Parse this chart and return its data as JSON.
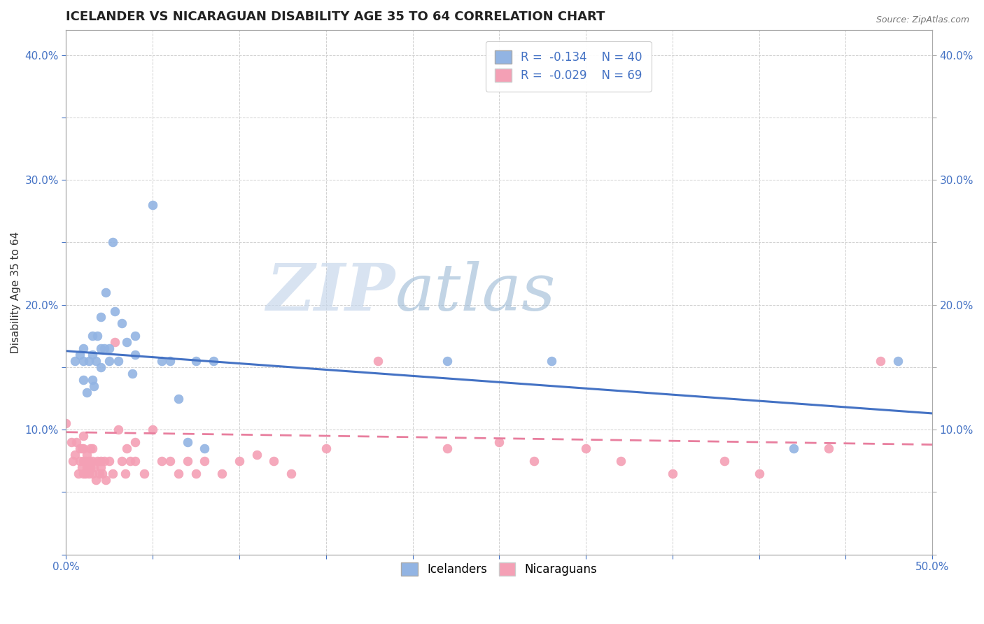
{
  "title": "ICELANDER VS NICARAGUAN DISABILITY AGE 35 TO 64 CORRELATION CHART",
  "source": "Source: ZipAtlas.com",
  "xlabel": "",
  "ylabel": "Disability Age 35 to 64",
  "xlim": [
    0.0,
    0.5
  ],
  "ylim": [
    0.0,
    0.42
  ],
  "xticks": [
    0.0,
    0.05,
    0.1,
    0.15,
    0.2,
    0.25,
    0.3,
    0.35,
    0.4,
    0.45,
    0.5
  ],
  "yticks": [
    0.0,
    0.05,
    0.1,
    0.15,
    0.2,
    0.25,
    0.3,
    0.35,
    0.4
  ],
  "icelander_color": "#92b4e3",
  "nicaraguan_color": "#f4a0b5",
  "icelander_line_color": "#4472c4",
  "nicaraguan_line_color": "#e87e9e",
  "legend_R_icelander": "-0.134",
  "legend_N_icelander": "40",
  "legend_R_nicaraguan": "-0.029",
  "legend_N_nicaraguan": "69",
  "watermark_zip": "ZIP",
  "watermark_atlas": "atlas",
  "background_color": "#ffffff",
  "grid_color": "#d0d0d0",
  "title_fontsize": 13,
  "axis_label_fontsize": 11,
  "tick_fontsize": 11,
  "legend_fontsize": 12,
  "source_fontsize": 9,
  "icelander_x": [
    0.005,
    0.008,
    0.01,
    0.01,
    0.01,
    0.012,
    0.013,
    0.015,
    0.015,
    0.015,
    0.016,
    0.017,
    0.018,
    0.02,
    0.02,
    0.02,
    0.022,
    0.023,
    0.025,
    0.025,
    0.027,
    0.028,
    0.03,
    0.032,
    0.035,
    0.038,
    0.04,
    0.04,
    0.05,
    0.055,
    0.06,
    0.065,
    0.07,
    0.075,
    0.08,
    0.085,
    0.22,
    0.28,
    0.42,
    0.48
  ],
  "icelander_y": [
    0.155,
    0.16,
    0.14,
    0.155,
    0.165,
    0.13,
    0.155,
    0.14,
    0.16,
    0.175,
    0.135,
    0.155,
    0.175,
    0.15,
    0.165,
    0.19,
    0.165,
    0.21,
    0.155,
    0.165,
    0.25,
    0.195,
    0.155,
    0.185,
    0.17,
    0.145,
    0.16,
    0.175,
    0.28,
    0.155,
    0.155,
    0.125,
    0.09,
    0.155,
    0.085,
    0.155,
    0.155,
    0.155,
    0.085,
    0.155
  ],
  "nicaraguan_x": [
    0.0,
    0.003,
    0.004,
    0.005,
    0.006,
    0.007,
    0.008,
    0.008,
    0.009,
    0.009,
    0.01,
    0.01,
    0.01,
    0.01,
    0.011,
    0.011,
    0.012,
    0.012,
    0.013,
    0.013,
    0.014,
    0.014,
    0.015,
    0.015,
    0.015,
    0.016,
    0.017,
    0.018,
    0.019,
    0.02,
    0.02,
    0.021,
    0.022,
    0.023,
    0.025,
    0.027,
    0.028,
    0.03,
    0.032,
    0.034,
    0.035,
    0.037,
    0.04,
    0.04,
    0.045,
    0.05,
    0.055,
    0.06,
    0.065,
    0.07,
    0.075,
    0.08,
    0.09,
    0.1,
    0.11,
    0.12,
    0.13,
    0.15,
    0.18,
    0.22,
    0.25,
    0.27,
    0.3,
    0.32,
    0.35,
    0.38,
    0.4,
    0.44,
    0.47
  ],
  "nicaraguan_y": [
    0.105,
    0.09,
    0.075,
    0.08,
    0.09,
    0.065,
    0.075,
    0.085,
    0.07,
    0.085,
    0.065,
    0.075,
    0.085,
    0.095,
    0.065,
    0.075,
    0.07,
    0.08,
    0.065,
    0.075,
    0.07,
    0.085,
    0.065,
    0.075,
    0.085,
    0.07,
    0.06,
    0.075,
    0.065,
    0.07,
    0.075,
    0.065,
    0.075,
    0.06,
    0.075,
    0.065,
    0.17,
    0.1,
    0.075,
    0.065,
    0.085,
    0.075,
    0.09,
    0.075,
    0.065,
    0.1,
    0.075,
    0.075,
    0.065,
    0.075,
    0.065,
    0.075,
    0.065,
    0.075,
    0.08,
    0.075,
    0.065,
    0.085,
    0.155,
    0.085,
    0.09,
    0.075,
    0.085,
    0.075,
    0.065,
    0.075,
    0.065,
    0.085,
    0.155
  ],
  "ice_regline_x0": 0.0,
  "ice_regline_y0": 0.163,
  "ice_regline_x1": 0.5,
  "ice_regline_y1": 0.113,
  "nic_regline_x0": 0.0,
  "nic_regline_y0": 0.098,
  "nic_regline_x1": 0.5,
  "nic_regline_y1": 0.088
}
